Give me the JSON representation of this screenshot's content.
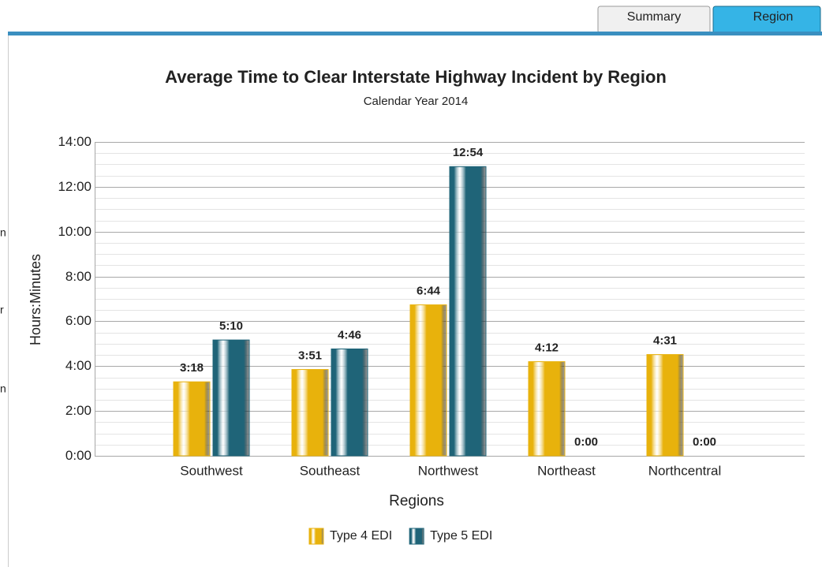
{
  "tabs": [
    "Summary",
    "Region"
  ],
  "clipped_text": [
    "n",
    "r",
    "n"
  ],
  "chart_data": {
    "type": "bar",
    "title": "Average Time to Clear Interstate Highway Incident by Region",
    "subtitle": "Calendar Year 2014",
    "x_label": "Regions",
    "y_label": "Hours:Minutes",
    "categories": [
      "Southwest",
      "Southeast",
      "Northwest",
      "Northeast",
      "Northcentral"
    ],
    "series": [
      {
        "name": "Type 4 EDI",
        "color": "#e8b20c",
        "values": [
          198,
          231,
          404,
          252,
          271
        ],
        "value_labels": [
          "3:18",
          "3:51",
          "6:44",
          "4:12",
          "4:31"
        ]
      },
      {
        "name": "Type 5 EDI",
        "color": "#1f6478",
        "values": [
          310,
          286,
          774,
          0,
          0
        ],
        "value_labels": [
          "5:10",
          "4:46",
          "12:54",
          "0:00",
          "0:00"
        ]
      }
    ],
    "ylim": [
      0,
      840
    ],
    "yticks": [
      {
        "value": 0,
        "label": "0:00"
      },
      {
        "value": 120,
        "label": "2:00"
      },
      {
        "value": 240,
        "label": "4:00"
      },
      {
        "value": 360,
        "label": "6:00"
      },
      {
        "value": 480,
        "label": "8:00"
      },
      {
        "value": 600,
        "label": "10:00"
      },
      {
        "value": 720,
        "label": "12:00"
      },
      {
        "value": 840,
        "label": "14:00"
      }
    ],
    "grid": true,
    "legend": "bottom"
  }
}
